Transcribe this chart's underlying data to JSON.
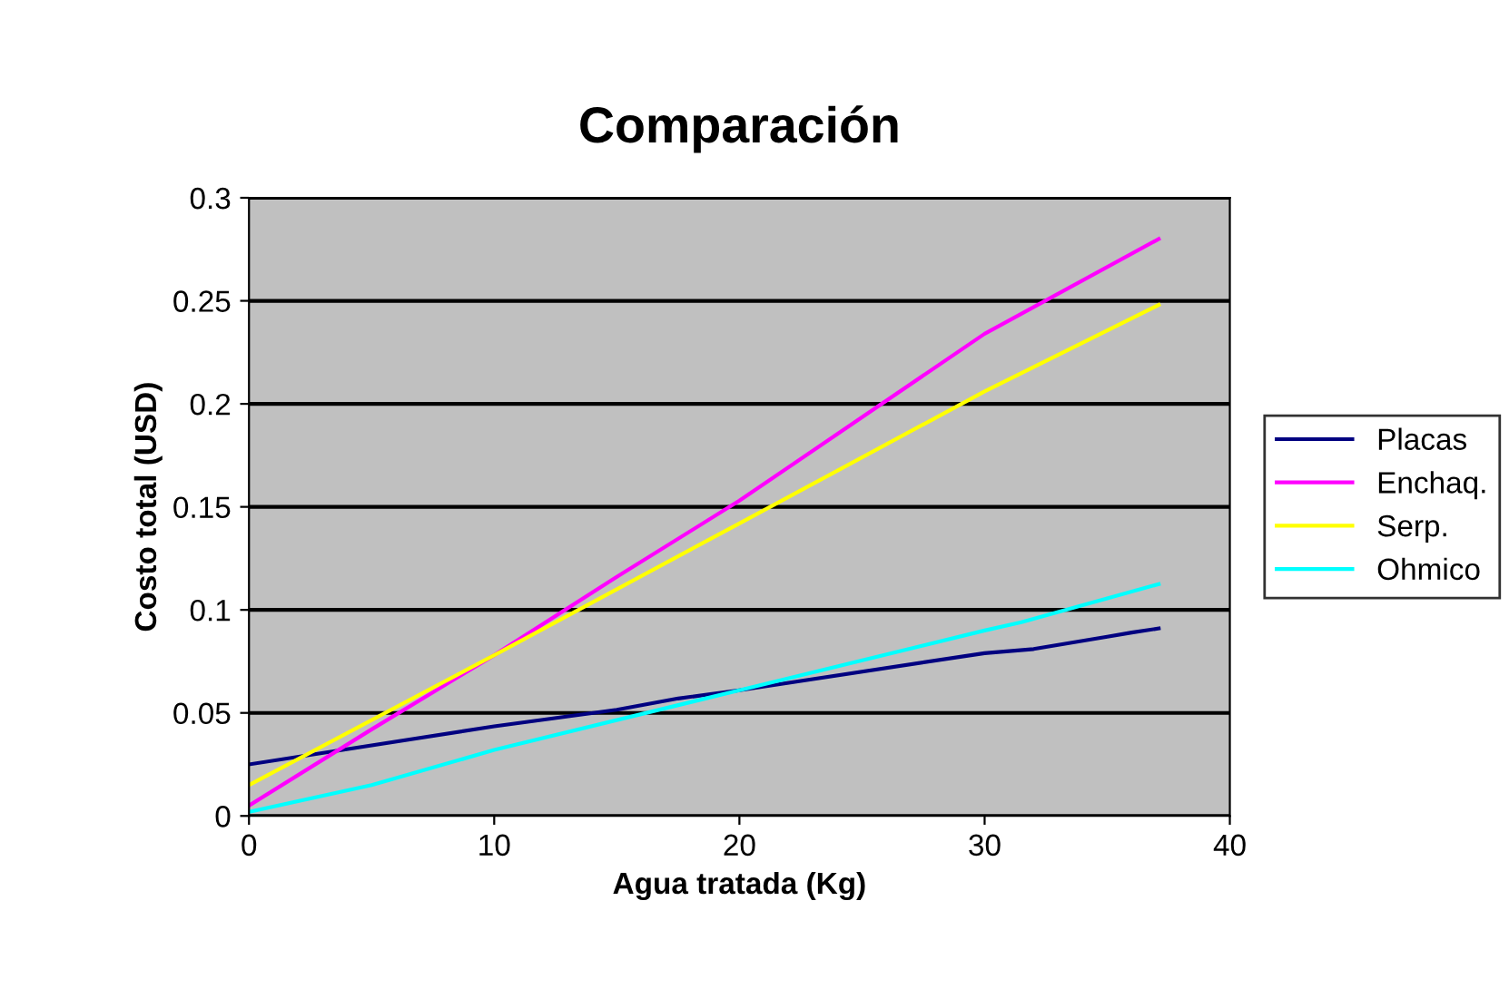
{
  "chart_data": {
    "type": "line",
    "title": "Comparación",
    "xlabel": "Agua tratada (Kg)",
    "ylabel": "Costo total (USD)",
    "xlim": [
      0,
      40
    ],
    "xticks": [
      0,
      10,
      20,
      30,
      40
    ],
    "ylim": [
      0,
      0.3
    ],
    "yticks": [
      0,
      0.05,
      0.1,
      0.15,
      0.2,
      0.25,
      0.3
    ],
    "grid": "y",
    "legend": "right",
    "marker": "none",
    "line_style": "solid",
    "series": [
      {
        "name": "Placas",
        "color": "#000080",
        "x": [
          0,
          10,
          15,
          17.5,
          20,
          30,
          32,
          35,
          36,
          37.1
        ],
        "values": [
          0.025,
          0.0435,
          0.0515,
          0.057,
          0.061,
          0.079,
          0.081,
          0.087,
          0.089,
          0.091
        ]
      },
      {
        "name": "Enchaq.",
        "color": "#ff00ff",
        "x": [
          0,
          5,
          10,
          15,
          20,
          30,
          37.1
        ],
        "values": [
          0.005,
          0.042,
          0.078,
          0.116,
          0.153,
          0.234,
          0.28
        ]
      },
      {
        "name": "Serp.",
        "color": "#ffff00",
        "x": [
          0,
          10,
          20,
          30,
          37.1
        ],
        "values": [
          0.015,
          0.078,
          0.142,
          0.206,
          0.248
        ]
      },
      {
        "name": "Ohmico",
        "color": "#00ffff",
        "x": [
          0,
          5,
          10,
          20,
          30,
          31.5,
          37.1
        ],
        "values": [
          0.002,
          0.015,
          0.032,
          0.061,
          0.09,
          0.094,
          0.1125
        ]
      }
    ]
  }
}
